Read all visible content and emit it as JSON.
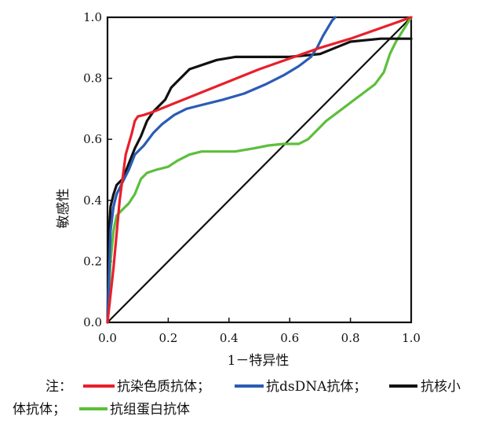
{
  "chart_data": {
    "type": "line",
    "xlabel": "1－特异性",
    "ylabel": "敏感性",
    "xlim": [
      0,
      1
    ],
    "ylim": [
      0,
      1
    ],
    "x_ticks": [
      "0.0",
      "0.2",
      "0.4",
      "0.6",
      "0.8",
      "1.0"
    ],
    "y_ticks": [
      "0.0",
      "0.2",
      "0.4",
      "0.6",
      "0.8",
      "1.0"
    ],
    "grid": false,
    "legend": {
      "prefix": "注：",
      "entries": [
        "抗染色质抗体；",
        "抗dsDNA抗体；",
        "抗核小",
        "体抗体；",
        "抗组蛋白抗体"
      ]
    },
    "series": [
      {
        "name": "抗染色质抗体",
        "color": "#e8202a",
        "x": [
          0,
          0.02,
          0.04,
          0.06,
          0.08,
          0.09,
          0.1,
          0.12,
          0.15,
          0.2,
          0.3,
          0.4,
          0.5,
          0.6,
          0.7,
          0.8,
          0.9,
          1.0
        ],
        "y": [
          0,
          0.18,
          0.4,
          0.55,
          0.62,
          0.66,
          0.675,
          0.68,
          0.69,
          0.71,
          0.75,
          0.79,
          0.83,
          0.865,
          0.9,
          0.93,
          0.965,
          1.0
        ]
      },
      {
        "name": "抗dsDNA抗体",
        "color": "#2b5bb5",
        "x": [
          0,
          0.01,
          0.02,
          0.03,
          0.05,
          0.07,
          0.09,
          0.12,
          0.15,
          0.18,
          0.22,
          0.26,
          0.3,
          0.38,
          0.45,
          0.52,
          0.58,
          0.63,
          0.67,
          0.69,
          0.71,
          0.74,
          0.75
        ],
        "y": [
          0,
          0.3,
          0.38,
          0.42,
          0.46,
          0.5,
          0.55,
          0.58,
          0.62,
          0.65,
          0.68,
          0.7,
          0.71,
          0.73,
          0.75,
          0.78,
          0.81,
          0.84,
          0.87,
          0.9,
          0.94,
          0.99,
          1.0
        ]
      },
      {
        "name": "抗核小体抗体",
        "color": "#111111",
        "x": [
          0,
          0.005,
          0.01,
          0.02,
          0.03,
          0.05,
          0.07,
          0.09,
          0.11,
          0.13,
          0.15,
          0.17,
          0.19,
          0.21,
          0.23,
          0.25,
          0.27,
          0.3,
          0.33,
          0.36,
          0.42,
          0.5,
          0.6,
          0.7,
          0.75,
          0.8,
          0.9,
          0.95,
          1.0
        ],
        "y": [
          0,
          0.3,
          0.38,
          0.42,
          0.45,
          0.47,
          0.52,
          0.57,
          0.61,
          0.66,
          0.69,
          0.71,
          0.73,
          0.77,
          0.79,
          0.81,
          0.83,
          0.84,
          0.85,
          0.86,
          0.87,
          0.87,
          0.87,
          0.88,
          0.9,
          0.92,
          0.93,
          0.93,
          0.93
        ]
      },
      {
        "name": "抗组蛋白抗体",
        "color": "#5cbf3c",
        "x": [
          0,
          0.01,
          0.02,
          0.03,
          0.05,
          0.07,
          0.09,
          0.11,
          0.13,
          0.16,
          0.2,
          0.23,
          0.27,
          0.31,
          0.36,
          0.42,
          0.48,
          0.53,
          0.58,
          0.63,
          0.66,
          0.69,
          0.72,
          0.76,
          0.8,
          0.84,
          0.88,
          0.91,
          0.93,
          0.95,
          1.0
        ],
        "y": [
          0,
          0.2,
          0.3,
          0.35,
          0.37,
          0.39,
          0.42,
          0.47,
          0.49,
          0.5,
          0.51,
          0.53,
          0.55,
          0.56,
          0.56,
          0.56,
          0.57,
          0.58,
          0.585,
          0.585,
          0.6,
          0.63,
          0.66,
          0.69,
          0.72,
          0.75,
          0.78,
          0.82,
          0.88,
          0.92,
          1.0
        ]
      },
      {
        "name": "",
        "color": "#111111",
        "x": [
          0,
          1
        ],
        "y": [
          0,
          1
        ]
      }
    ]
  }
}
